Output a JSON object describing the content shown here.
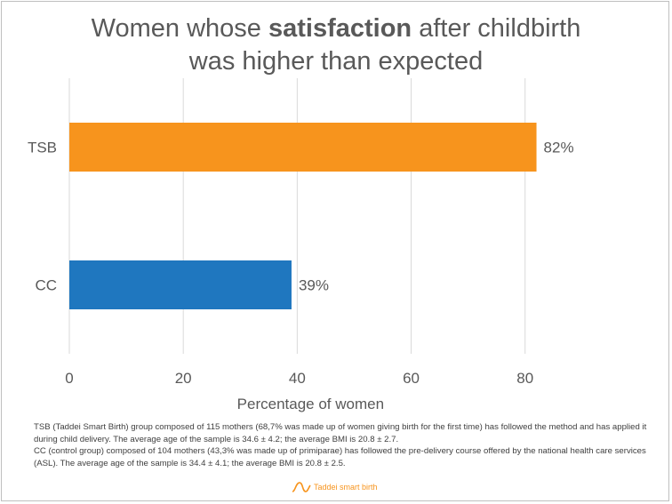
{
  "title": {
    "pre": "Women whose ",
    "bold": "satisfaction",
    "post": " after childbirth",
    "line2": "was higher than expected"
  },
  "chart_data": {
    "type": "bar",
    "orientation": "horizontal",
    "categories": [
      "TSB",
      "CC"
    ],
    "values": [
      82,
      39
    ],
    "value_labels": [
      "82%",
      "39%"
    ],
    "bar_colors": [
      "#f7941d",
      "#1f77bf"
    ],
    "xlabel": "Percentage of women",
    "xlim": [
      0,
      88
    ],
    "xticks": [
      0,
      20,
      40,
      60,
      80
    ],
    "grid": true
  },
  "notes": {
    "tsb": "TSB (Taddei Smart Birth) group composed of 115 mothers (68,7% was made up of women giving birth for the first time) has followed the method and has applied it during child delivery. The average age of the sample is 34.6 ± 4.2; the average BMI is 20.8 ± 2.7.",
    "cc": "CC (control group) composed of 104 mothers (43,3% was made up of primiparae) has followed the pre-delivery course offered by the national health care services (ASL). The average age of the sample is 34.4 ± 4.1; the average BMI is 20.8 ± 2.5."
  },
  "logo": {
    "text": "Taddei smart birth",
    "icon": "wave-logo-icon"
  }
}
